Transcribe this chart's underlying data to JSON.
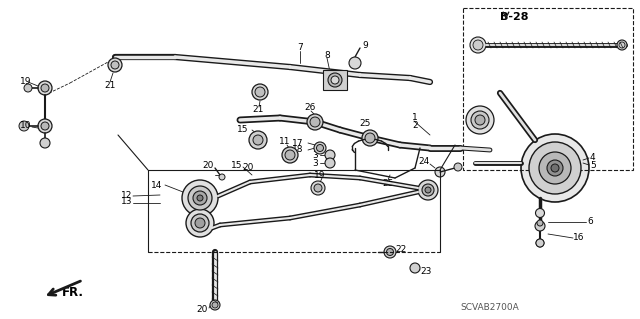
{
  "bg_color": "#ffffff",
  "diagram_code": "SCVAB2700A",
  "page_ref": "B-28",
  "line_color": "#1a1a1a",
  "label_color": "#000000",
  "label_fontsize": 6.5,
  "ref_fontsize": 8,
  "code_fontsize": 6.5,
  "figsize": [
    6.4,
    3.19
  ],
  "dpi": 100
}
